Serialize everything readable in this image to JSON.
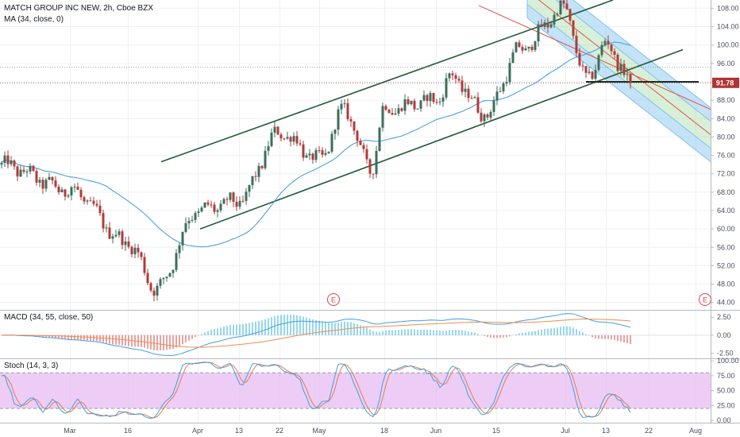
{
  "header": {
    "symbol_title": "MATCH GROUP INC NEW, 2h, Cboe BZX",
    "ma_label": "MA (34, close, 0)"
  },
  "panes": {
    "macd_label": "MACD (34, 55, close, 50)",
    "stoch_label": "Stoch (14, 3, 3)"
  },
  "last_price": "91.78",
  "earnings_marker": "E",
  "colors": {
    "up": "#3c6e5a",
    "down": "#b23a3a",
    "ma": "#4aa3df",
    "channel": "#1f5a3a",
    "fib_blue": "#7fc0ee",
    "fib_green": "#a8dba8",
    "median_red": "#e05050",
    "macd_line": "#3ea0e0",
    "signal_line": "#f28c4a",
    "hist_pos": "#6cc6e6",
    "hist_neg": "#e07a7a",
    "stoch_k": "#3ea0e0",
    "stoch_d": "#e57c4a",
    "stoch_band": "#e5b8f2",
    "price_tag": "#b03434"
  },
  "chart_data": [
    {
      "type": "candlestick",
      "x_ticks": [
        "Mar",
        "16",
        "Apr",
        "13",
        "22",
        "May",
        "18",
        "Jun",
        "15",
        "Jul",
        "13",
        "22",
        "Aug"
      ],
      "y_ticks": [
        "108.00",
        "104.00",
        "100.00",
        "96.00",
        "92.00",
        "88.00",
        "84.00",
        "80.00",
        "76.00",
        "72.00",
        "68.00",
        "64.00",
        "60.00",
        "56.00",
        "52.00",
        "48.00",
        "44.00"
      ],
      "ylim": [
        42.4,
        109.8
      ],
      "last_value": 91.78,
      "anchors": [
        {
          "x": "start",
          "y": 74
        },
        {
          "x": "Mar",
          "y": 68.4
        },
        {
          "x": "16",
          "y": 57
        },
        {
          "x": "mid-Mar low",
          "y": 47
        },
        {
          "x": "Apr",
          "y": 64
        },
        {
          "x": "13",
          "y": 66
        },
        {
          "x": "22",
          "y": 81
        },
        {
          "x": "May",
          "y": 75
        },
        {
          "x": "May high",
          "y": 86
        },
        {
          "x": "May low",
          "y": 73
        },
        {
          "x": "18",
          "y": 86
        },
        {
          "x": "Jun",
          "y": 93
        },
        {
          "x": "Jun",
          "y": 88
        },
        {
          "x": "15",
          "y": 85
        },
        {
          "x": "late Jun",
          "y": 99
        },
        {
          "x": "Jul high",
          "y": 108
        },
        {
          "x": "Jul",
          "y": 92.5
        },
        {
          "x": "13",
          "y": 100
        },
        {
          "x": "last",
          "y": 91.78
        }
      ],
      "ma_series": "MA (34, close, 0)"
    },
    {
      "type": "bar",
      "name": "MACD (34, 55, close, 50)",
      "y_ticks": [
        "2.50",
        "0.00",
        "-2.50"
      ],
      "ylim": [
        -3.2,
        3.4
      ]
    },
    {
      "type": "line",
      "name": "Stoch (14, 3, 3)",
      "y_ticks": [
        "100.00",
        "75.00",
        "50.00",
        "25.00",
        "0.00"
      ],
      "ylim": [
        -4,
        103
      ],
      "bands": [
        20,
        80
      ]
    }
  ]
}
